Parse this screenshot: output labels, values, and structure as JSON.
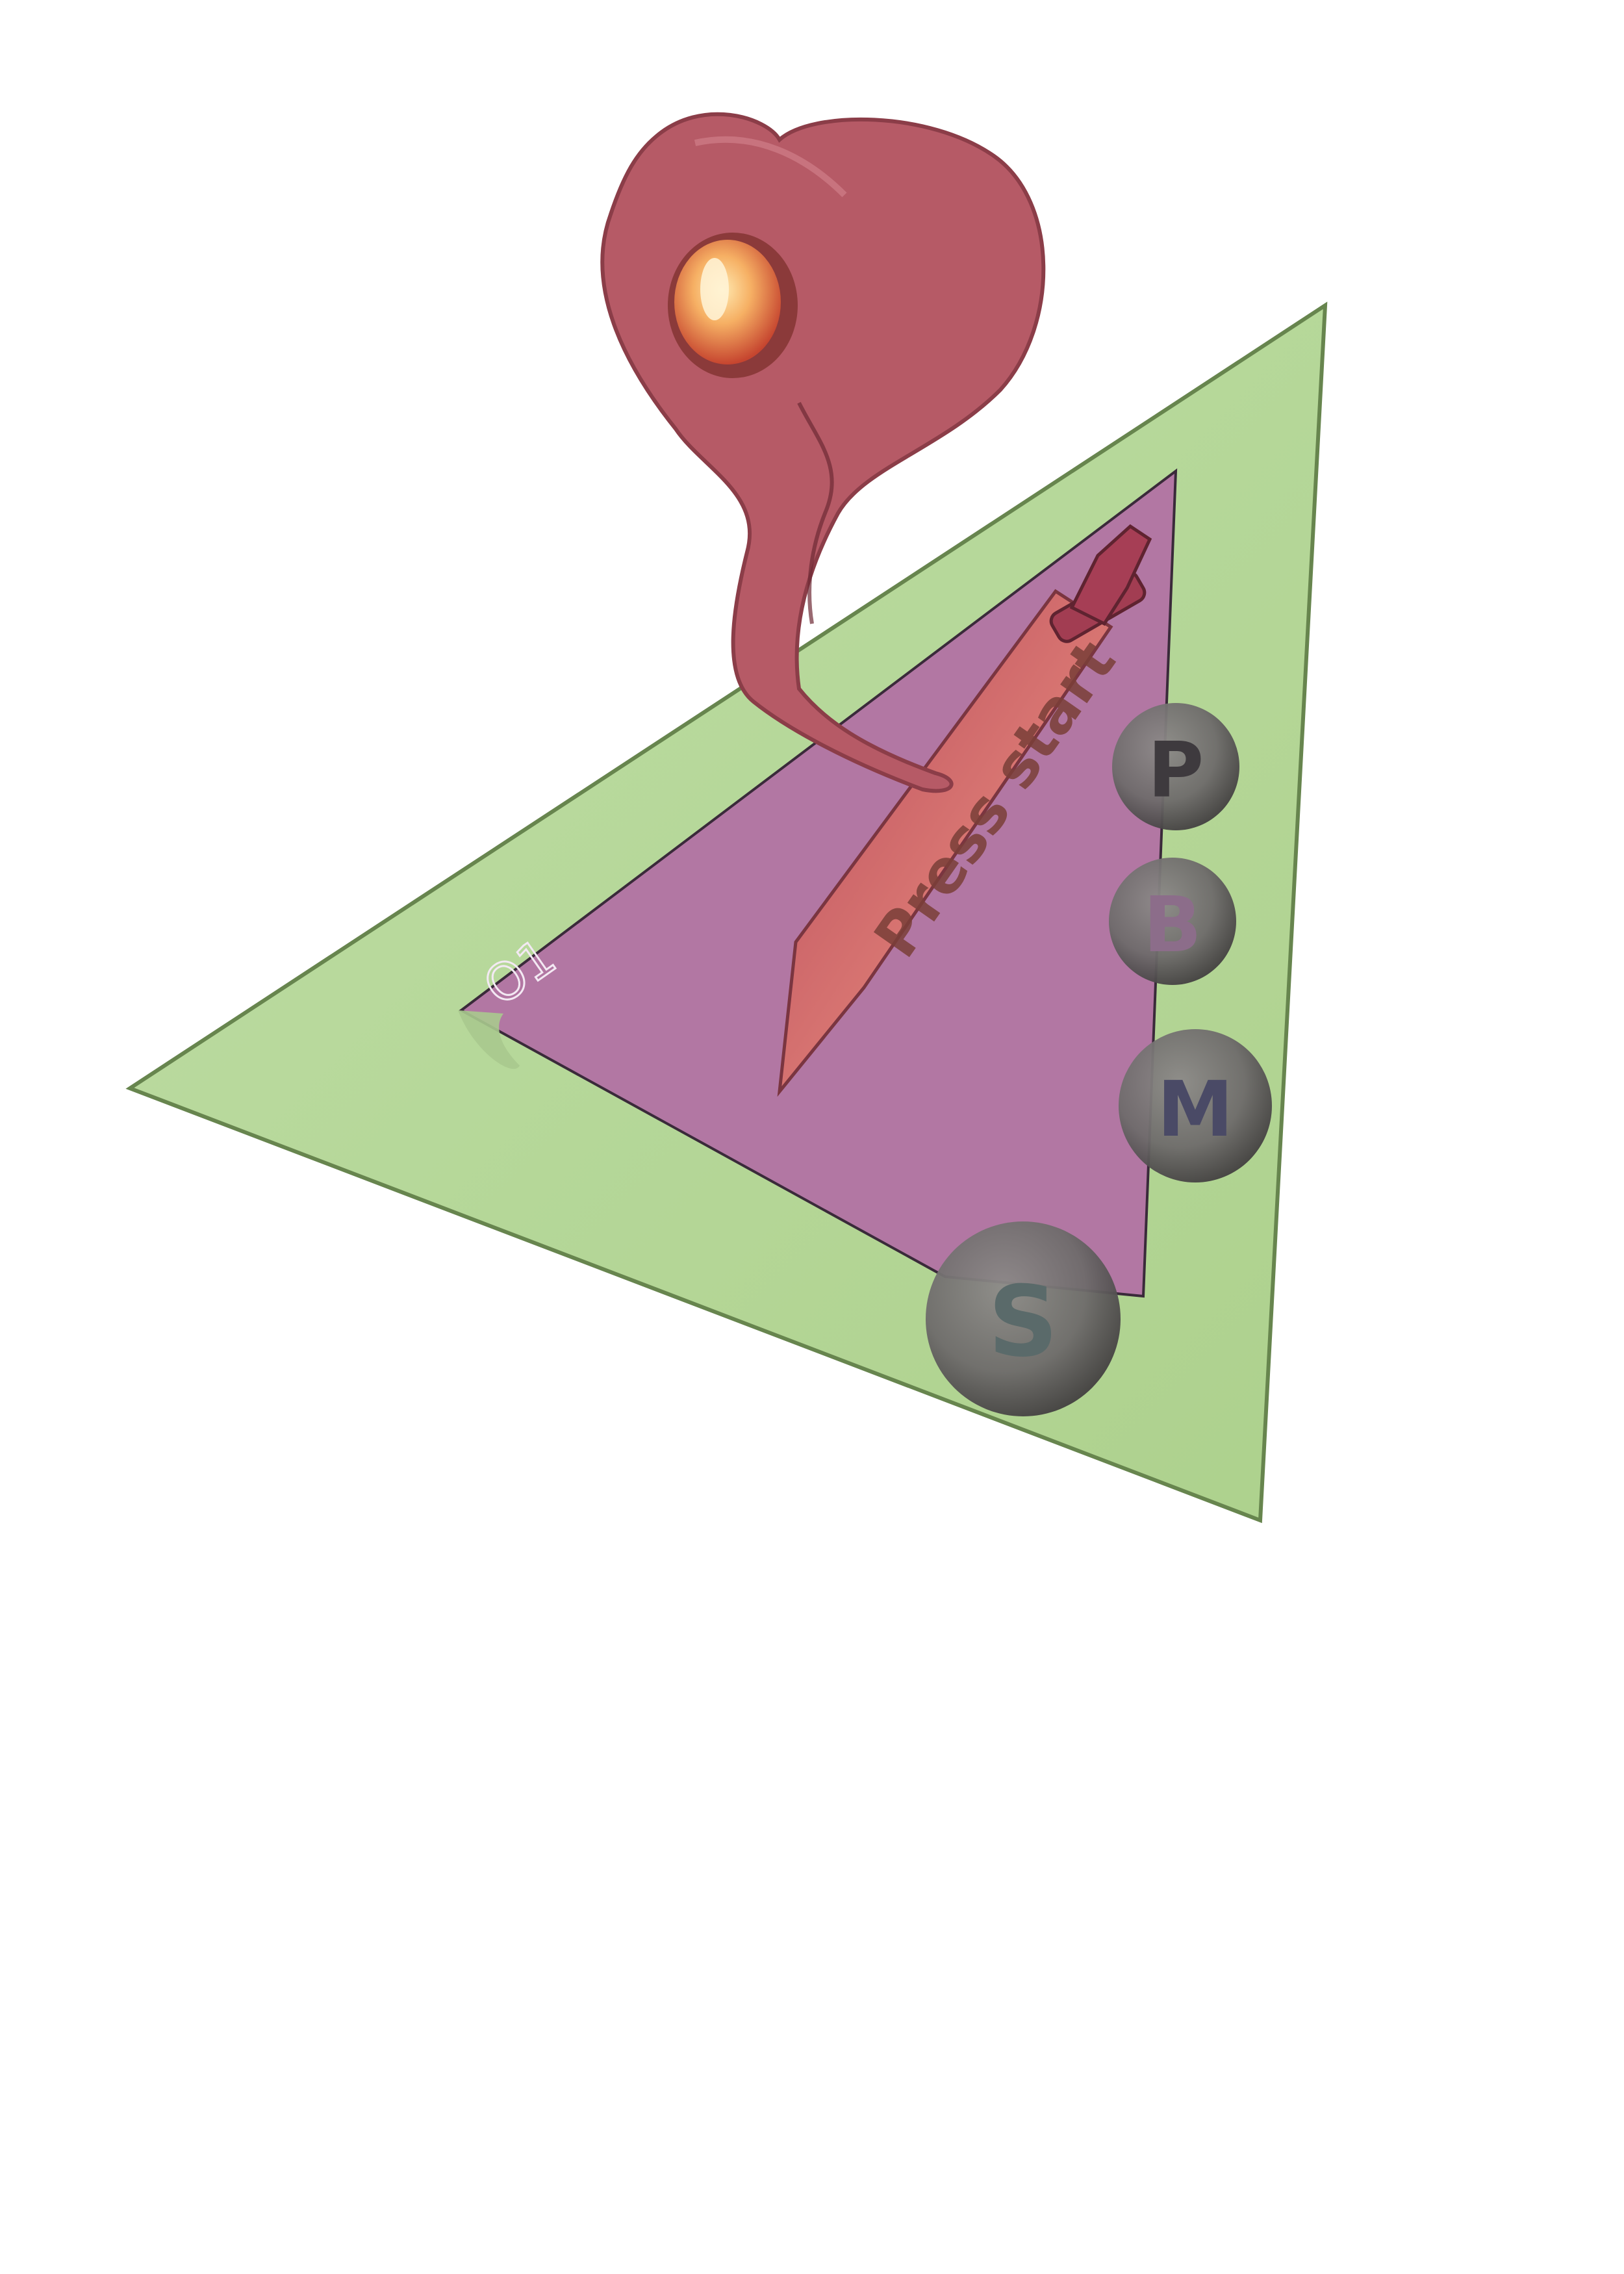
{
  "level_label": "O1",
  "start_prompt": "Press start",
  "menu_balls": [
    {
      "letter": "P",
      "letter_color": "#3e3a3e"
    },
    {
      "letter": "B",
      "letter_color": "#8c6d8a"
    },
    {
      "letter": "M",
      "letter_color": "#4a4a66"
    },
    {
      "letter": "S",
      "letter_color": "#5a6a6a"
    }
  ],
  "colors": {
    "background": "#ffffff",
    "outer_triangle": "#b7d89a",
    "outer_triangle_edge": "#86b15e",
    "inner_panel": "#b277a3",
    "creature": "#b65a66",
    "orb": "#f3a35d",
    "sword": "#e9857e",
    "ball": "#6f6c6c"
  },
  "icons": {
    "creature": "red-serpent-heart-creature-icon",
    "orb": "glowing-orange-orb-icon",
    "sword": "sword-icon"
  }
}
